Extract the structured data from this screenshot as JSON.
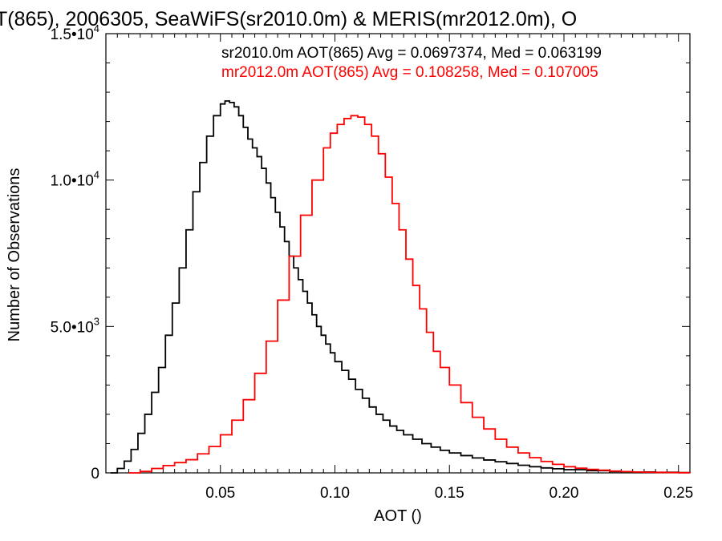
{
  "chart_data": {
    "type": "line",
    "title": "T(865), 2006305, SeaWiFS(sr2010.0m) & MERIS(mr2012.0m), O",
    "xlabel": "AOT ()",
    "ylabel": "Number of Observations",
    "xlim": [
      0.0,
      0.255
    ],
    "ylim": [
      0,
      15000
    ],
    "x_ticks": [
      {
        "value": 0.05,
        "label": "0.05"
      },
      {
        "value": 0.1,
        "label": "0.10"
      },
      {
        "value": 0.15,
        "label": "0.15"
      },
      {
        "value": 0.2,
        "label": "0.20"
      },
      {
        "value": 0.25,
        "label": "0.25"
      }
    ],
    "y_ticks": [
      {
        "value": 0,
        "mant": "0",
        "exp": ""
      },
      {
        "value": 5000,
        "mant": "5.0•10",
        "exp": "3"
      },
      {
        "value": 10000,
        "mant": "1.0•10",
        "exp": "4"
      },
      {
        "value": 15000,
        "mant": "1.5•10",
        "exp": "4"
      }
    ],
    "series": [
      {
        "name": "sr2010.0m AOT(865) Avg = 0.0697374, Med = 0.063199",
        "color": "#000000",
        "x": [
          0.002,
          0.005,
          0.008,
          0.011,
          0.014,
          0.017,
          0.02,
          0.023,
          0.026,
          0.029,
          0.032,
          0.035,
          0.038,
          0.041,
          0.044,
          0.047,
          0.05,
          0.052,
          0.054,
          0.056,
          0.058,
          0.06,
          0.062,
          0.064,
          0.066,
          0.068,
          0.07,
          0.072,
          0.074,
          0.076,
          0.078,
          0.08,
          0.082,
          0.084,
          0.086,
          0.088,
          0.09,
          0.092,
          0.094,
          0.096,
          0.098,
          0.1,
          0.103,
          0.106,
          0.109,
          0.112,
          0.115,
          0.118,
          0.121,
          0.124,
          0.127,
          0.13,
          0.134,
          0.138,
          0.142,
          0.146,
          0.15,
          0.155,
          0.16,
          0.165,
          0.17,
          0.175,
          0.18,
          0.185,
          0.19,
          0.195,
          0.2,
          0.21,
          0.22,
          0.23,
          0.24,
          0.25,
          0.255
        ],
        "y": [
          0,
          150,
          400,
          800,
          1350,
          2000,
          2750,
          3600,
          4700,
          5800,
          7000,
          8300,
          9600,
          10600,
          11500,
          12200,
          12600,
          12700,
          12650,
          12500,
          12200,
          11800,
          11400,
          11100,
          10800,
          10400,
          9900,
          9400,
          8900,
          8400,
          7900,
          7400,
          7000,
          6600,
          6200,
          5800,
          5400,
          5000,
          4700,
          4400,
          4100,
          3800,
          3500,
          3200,
          2850,
          2550,
          2250,
          2000,
          1800,
          1600,
          1450,
          1300,
          1150,
          1000,
          880,
          770,
          680,
          590,
          510,
          440,
          380,
          320,
          260,
          210,
          170,
          140,
          110,
          75,
          45,
          30,
          20,
          10,
          5
        ]
      },
      {
        "name": "mr2012.0m AOT(865) Avg = 0.108258, Med = 0.107005",
        "color": "#ff0000",
        "x": [
          0.01,
          0.015,
          0.02,
          0.025,
          0.03,
          0.035,
          0.04,
          0.045,
          0.05,
          0.055,
          0.06,
          0.065,
          0.07,
          0.075,
          0.08,
          0.085,
          0.09,
          0.095,
          0.098,
          0.101,
          0.104,
          0.107,
          0.11,
          0.113,
          0.116,
          0.119,
          0.122,
          0.125,
          0.128,
          0.131,
          0.134,
          0.137,
          0.14,
          0.143,
          0.146,
          0.15,
          0.155,
          0.16,
          0.165,
          0.17,
          0.175,
          0.18,
          0.185,
          0.19,
          0.195,
          0.2,
          0.205,
          0.21,
          0.215,
          0.22,
          0.225,
          0.23,
          0.235,
          0.24,
          0.245,
          0.25,
          0.255
        ],
        "y": [
          0,
          50,
          150,
          250,
          350,
          450,
          650,
          900,
          1300,
          1800,
          2500,
          3400,
          4500,
          5900,
          7400,
          8800,
          10000,
          11100,
          11600,
          11900,
          12100,
          12200,
          12150,
          11900,
          11500,
          10900,
          10100,
          9200,
          8300,
          7300,
          6400,
          5600,
          4800,
          4150,
          3600,
          3000,
          2400,
          1900,
          1500,
          1150,
          880,
          680,
          520,
          390,
          290,
          210,
          160,
          120,
          90,
          60,
          45,
          30,
          20,
          15,
          10,
          5,
          3
        ]
      }
    ],
    "legend": "top-right, text lines colored by series"
  }
}
